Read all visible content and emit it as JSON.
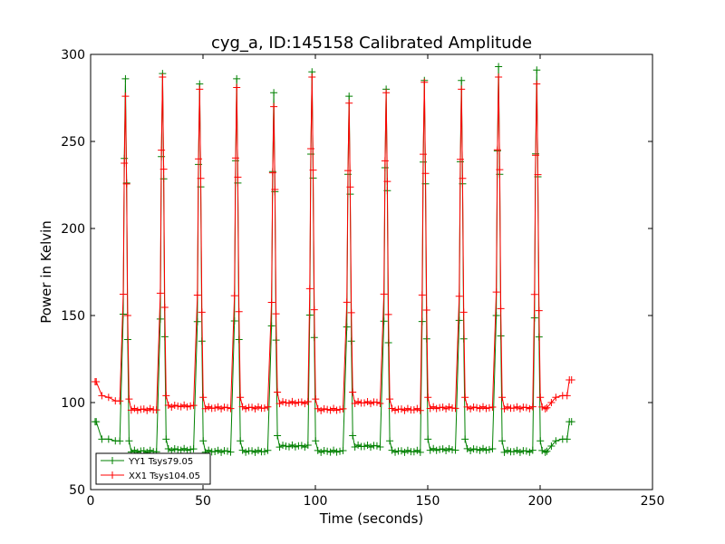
{
  "chart_data": {
    "type": "line",
    "title": "cyg_a, ID:145158 Calibrated Amplitude",
    "xlabel": "Time (seconds)",
    "ylabel": "Power in Kelvin",
    "xlim": [
      0,
      250
    ],
    "ylim": [
      50,
      300
    ],
    "xticks": [
      0,
      50,
      100,
      150,
      200,
      250
    ],
    "yticks": [
      50,
      100,
      150,
      200,
      250,
      300
    ],
    "legend_position": "lower-left",
    "peak_times": [
      15.5,
      32,
      48.5,
      65,
      81.5,
      98.5,
      115,
      131.5,
      148.5,
      165,
      181.5,
      198.5
    ],
    "series": [
      {
        "name": "YY1 Tsys79.05",
        "color": "#008000",
        "start_points": [
          [
            2,
            89
          ],
          [
            2.5,
            89
          ],
          [
            5,
            79
          ],
          [
            8,
            79
          ],
          [
            11,
            78
          ]
        ],
        "base_levels": [
          72,
          73,
          72,
          72,
          75,
          72,
          75,
          72,
          73,
          73,
          72
        ],
        "peak_values": [
          286,
          289,
          283,
          286,
          278,
          290,
          276,
          280,
          285,
          285,
          293,
          291
        ],
        "end_points": [
          [
            203,
            72
          ],
          [
            205,
            75
          ],
          [
            207,
            78
          ],
          [
            210,
            79
          ],
          [
            212,
            79
          ],
          [
            213,
            89
          ],
          [
            214,
            89
          ]
        ]
      },
      {
        "name": "XX1 Tsys104.05",
        "color": "#ff0000",
        "start_points": [
          [
            2,
            112
          ],
          [
            2.5,
            112
          ],
          [
            5,
            104
          ],
          [
            8,
            103
          ],
          [
            11,
            101
          ]
        ],
        "base_levels": [
          96,
          98,
          97,
          97,
          100,
          96,
          100,
          96,
          97,
          97,
          97
        ],
        "peak_values": [
          276,
          287,
          280,
          281,
          270,
          287,
          272,
          278,
          284,
          280,
          287,
          283
        ],
        "end_points": [
          [
            203,
            97
          ],
          [
            205,
            100
          ],
          [
            207,
            103
          ],
          [
            210,
            104
          ],
          [
            212,
            104
          ],
          [
            213,
            113
          ],
          [
            214,
            113
          ]
        ]
      }
    ]
  }
}
